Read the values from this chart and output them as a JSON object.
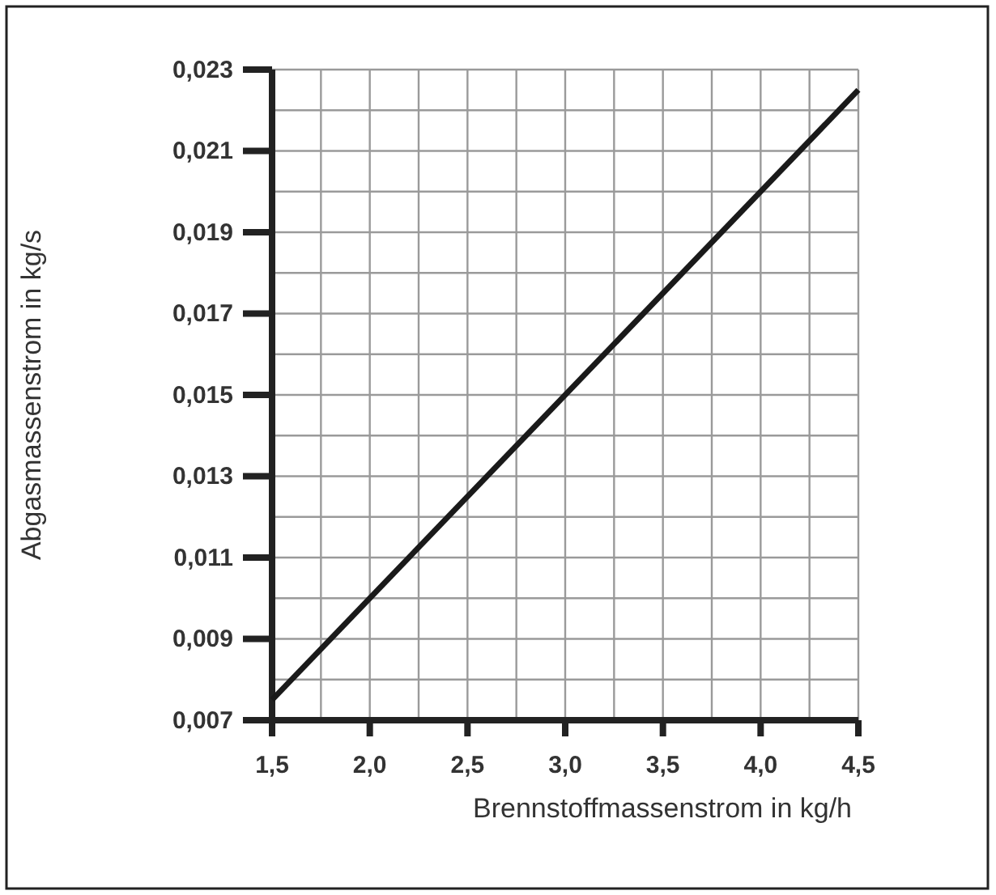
{
  "chart_data": {
    "type": "line",
    "xlabel": "Brennstoffmassenstrom in kg/h",
    "ylabel": "Abgasmassenstrom in kg/s",
    "x": [
      1.5,
      4.5
    ],
    "series": [
      {
        "color": "#1a1a1a",
        "values": [
          0.0075,
          0.0225
        ]
      }
    ],
    "xlim": [
      1.5,
      4.5
    ],
    "ylim": [
      0.007,
      0.023
    ],
    "xticks": [
      {
        "value": 1.5,
        "label": "1,5"
      },
      {
        "value": 2,
        "label": "2,0"
      },
      {
        "value": 2.5,
        "label": "2,5"
      },
      {
        "value": 3,
        "label": "3,0"
      },
      {
        "value": 3.5,
        "label": "3,5"
      },
      {
        "value": 4,
        "label": "4,0"
      },
      {
        "value": 4.5,
        "label": "4,5"
      }
    ],
    "yticks": [
      {
        "value": 0.007,
        "label": "0,007"
      },
      {
        "value": 0.009,
        "label": "0,009"
      },
      {
        "value": 0.011,
        "label": "0,011"
      },
      {
        "value": 0.013,
        "label": "0,013"
      },
      {
        "value": 0.015,
        "label": "0,015"
      },
      {
        "value": 0.017,
        "label": "0,017"
      },
      {
        "value": 0.019,
        "label": "0,019"
      },
      {
        "value": 0.021,
        "label": "0,021"
      },
      {
        "value": 0.023,
        "label": "0,023"
      }
    ],
    "grid": true,
    "line_style": "solid",
    "marker": "none"
  }
}
